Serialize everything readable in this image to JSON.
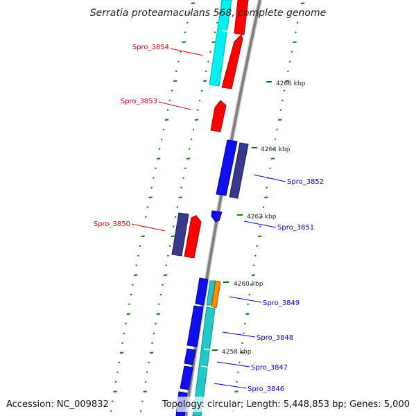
{
  "title": "Serratia proteamaculans 568, complete genome",
  "footer": {
    "accession": "Accession: NC_009832",
    "topology": "Topology: circular; Length: 5,448,853 bp; Genes: 5,000"
  },
  "ticks": [
    {
      "label": "4266 kbp"
    },
    {
      "label": "4264 kbp"
    },
    {
      "label": "4262 kbp"
    },
    {
      "label": "4260 kbp"
    },
    {
      "label": "4258 kbp"
    }
  ],
  "gene_labels": [
    {
      "label": "Spro_3854",
      "strand": "reverse"
    },
    {
      "label": "Spro_3853",
      "strand": "reverse"
    },
    {
      "label": "Spro_3852",
      "strand": "forward"
    },
    {
      "label": "Spro_3851",
      "strand": "forward"
    },
    {
      "label": "Spro_3850",
      "strand": "reverse"
    },
    {
      "label": "Spro_3849",
      "strand": "forward"
    },
    {
      "label": "Spro_3848",
      "strand": "forward"
    },
    {
      "label": "Spro_3847",
      "strand": "forward"
    },
    {
      "label": "Spro_3846",
      "strand": "forward"
    }
  ],
  "colors": {
    "reverse_label": "#dd0000",
    "forward_label": "#0000cc",
    "gene_red": "#ff0000",
    "gene_blue": "#1010ee",
    "gene_navy": "#3a3a8c",
    "gene_cyan": "#00f0f0",
    "gene_teal": "#20c8c8",
    "gene_orange": "#ff8c00",
    "backbone": "#808080",
    "tick_green": "#008000"
  }
}
